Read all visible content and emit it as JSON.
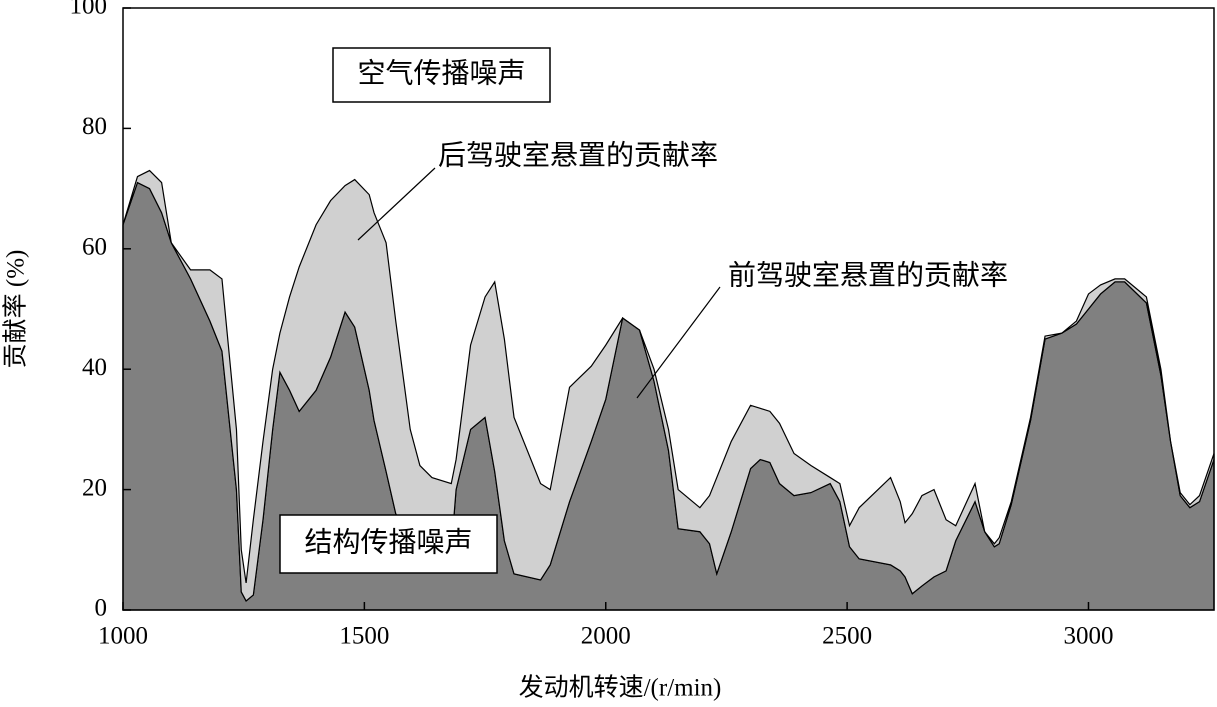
{
  "chart_data": {
    "type": "stacked-area",
    "x_label": "发动机转速/(r/min)",
    "y_label": "贡献率 (%)",
    "x": [
      1000,
      1030,
      1055,
      1080,
      1100,
      1140,
      1180,
      1205,
      1235,
      1245,
      1255,
      1270,
      1290,
      1310,
      1325,
      1345,
      1365,
      1400,
      1430,
      1460,
      1480,
      1510,
      1520,
      1545,
      1565,
      1595,
      1615,
      1640,
      1680,
      1690,
      1720,
      1750,
      1770,
      1790,
      1810,
      1865,
      1885,
      1925,
      1970,
      2000,
      2035,
      2070,
      2100,
      2130,
      2150,
      2195,
      2215,
      2230,
      2260,
      2300,
      2320,
      2340,
      2360,
      2390,
      2425,
      2465,
      2485,
      2505,
      2525,
      2590,
      2610,
      2620,
      2635,
      2655,
      2680,
      2705,
      2725,
      2765,
      2785,
      2805,
      2815,
      2840,
      2880,
      2910,
      2945,
      2975,
      3000,
      3025,
      3055,
      3075,
      3120,
      3150,
      3170,
      3190,
      3210,
      3230,
      3260
    ],
    "series": [
      {
        "name": "前驾驶室悬置的贡献率",
        "color": "#808080",
        "values": [
          64,
          71,
          70,
          66,
          61,
          55,
          48,
          43,
          20,
          3,
          1.5,
          2.5,
          15,
          30,
          39.5,
          36.5,
          33,
          36.5,
          42,
          49.5,
          47,
          36.5,
          31.5,
          23,
          16,
          12,
          10,
          9,
          10,
          20,
          30,
          32,
          23,
          11.5,
          6,
          5,
          7.5,
          18,
          28,
          35,
          48.5,
          46.5,
          38,
          26.5,
          13.5,
          13,
          11,
          6,
          13,
          23.5,
          25,
          24.5,
          21,
          19,
          19.5,
          21,
          18,
          10.5,
          8.5,
          7.5,
          6.5,
          5.5,
          2.7,
          4,
          5.5,
          6.5,
          11.5,
          18,
          13,
          10.5,
          11,
          17.5,
          31.5,
          45,
          46,
          47.5,
          50,
          52.5,
          54.5,
          54.5,
          51,
          39,
          28,
          19,
          17,
          18,
          25
        ]
      },
      {
        "name": "后驾驶室悬置的贡献率",
        "color": "#d0d0d0",
        "values": [
          0,
          1,
          3,
          5,
          0,
          1.5,
          8.5,
          12,
          10,
          7,
          3,
          12.5,
          13,
          10,
          6.5,
          15.5,
          24,
          27.5,
          26,
          21,
          24.5,
          32.5,
          34.5,
          38,
          32,
          18,
          14,
          13,
          11,
          5,
          14,
          20,
          31.5,
          33.5,
          26,
          16,
          12.5,
          19,
          12.5,
          9,
          0,
          0,
          2,
          3.5,
          6.5,
          4,
          8,
          16,
          15,
          10.5,
          8.5,
          8.5,
          10,
          7,
          4.5,
          1,
          3,
          3.5,
          8.5,
          14.5,
          11.5,
          9,
          13.3,
          15,
          14.5,
          8.5,
          2.5,
          3,
          0,
          0.5,
          1,
          0.5,
          0.5,
          0.5,
          0,
          0.5,
          2.5,
          1.5,
          0.5,
          0.5,
          1,
          1,
          0,
          0.5,
          0.5,
          1,
          1
        ]
      }
    ],
    "annotations": [
      "空气传播噪声",
      "结构传播噪声"
    ],
    "xlim": [
      1000,
      3260
    ],
    "xticks": [
      1000,
      1500,
      2000,
      2500,
      3000
    ],
    "ylim": [
      0,
      100
    ],
    "yticks": [
      0,
      20,
      40,
      60,
      80,
      100
    ]
  }
}
